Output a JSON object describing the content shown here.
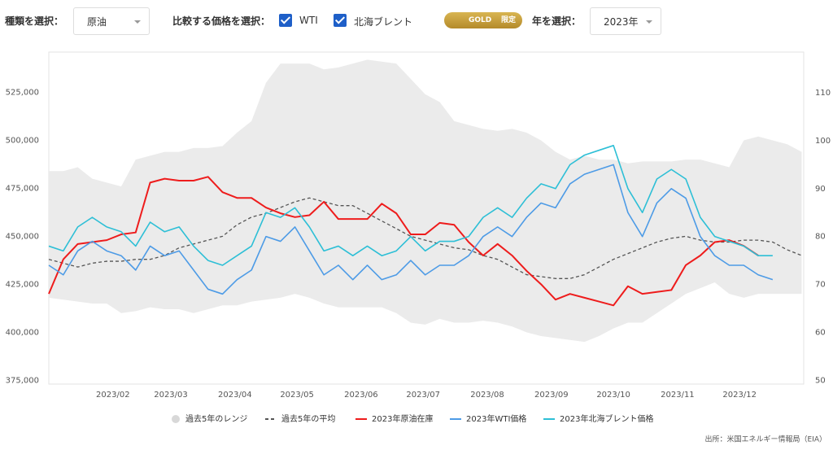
{
  "controls": {
    "type_label": "種類を選択：",
    "type_value": "原油",
    "compare_label": "比較する価格を選択：",
    "check1": "WTI",
    "check2": "北海ブレント",
    "badge1": "GOLD",
    "badge2": "限定",
    "year_label": "年を選択：",
    "year_value": "2023年"
  },
  "source": "出所：米国エネルギー情報局（EIA）",
  "chart_data": {
    "type": "line",
    "x": [
      0,
      7,
      14,
      21,
      28,
      35,
      42,
      49,
      56,
      63,
      70,
      77,
      84,
      91,
      98,
      105,
      112,
      119,
      126,
      133,
      140,
      147,
      154,
      161,
      168,
      175,
      182,
      189,
      196,
      203,
      210,
      217,
      224,
      231,
      238,
      245,
      252,
      259,
      266,
      273,
      280,
      287,
      294,
      301,
      308,
      315,
      322,
      329,
      336,
      343,
      350,
      357,
      364
    ],
    "xlim": [
      0,
      365
    ],
    "xticks": [
      {
        "value": 31,
        "label": "2023/02"
      },
      {
        "value": 59,
        "label": "2023/03"
      },
      {
        "value": 90,
        "label": "2023/04"
      },
      {
        "value": 120,
        "label": "2023/05"
      },
      {
        "value": 151,
        "label": "2023/06"
      },
      {
        "value": 181,
        "label": "2023/07"
      },
      {
        "value": 212,
        "label": "2023/08"
      },
      {
        "value": 243,
        "label": "2023/09"
      },
      {
        "value": 273,
        "label": "2023/10"
      },
      {
        "value": 304,
        "label": "2023/11"
      },
      {
        "value": 334,
        "label": "2023/12"
      }
    ],
    "ylim": [
      373000,
      546000
    ],
    "yticks": [
      {
        "value": 375000,
        "label": "375,000"
      },
      {
        "value": 400000,
        "label": "400,000"
      },
      {
        "value": 425000,
        "label": "425,000"
      },
      {
        "value": 450000,
        "label": "450,000"
      },
      {
        "value": 475000,
        "label": "475,000"
      },
      {
        "value": 500000,
        "label": "500,000"
      },
      {
        "value": 525000,
        "label": "525,000"
      }
    ],
    "y2lim": [
      49.2,
      118.5
    ],
    "y2ticks": [
      50,
      60,
      70,
      80,
      90,
      100,
      110
    ],
    "series": [
      {
        "name": "過去5年のレンジ",
        "kind": "range",
        "color": "#ebebeb",
        "high": [
          484000,
          484000,
          486000,
          480000,
          478000,
          476000,
          490000,
          492000,
          494000,
          494000,
          496000,
          496000,
          497000,
          504000,
          510000,
          530000,
          540000,
          540000,
          540000,
          537000,
          538000,
          540000,
          542000,
          541000,
          540000,
          532000,
          524000,
          520000,
          510000,
          508000,
          506000,
          505000,
          506000,
          504000,
          500000,
          494000,
          490000,
          492000,
          490000,
          490000,
          488000,
          489000,
          489000,
          489000,
          490000,
          490000,
          488000,
          486000,
          500000,
          502000,
          500000,
          498000,
          494000
        ],
        "low": [
          418000,
          417000,
          416000,
          415000,
          415000,
          410000,
          411000,
          413000,
          412000,
          412000,
          410000,
          412000,
          414000,
          414000,
          416000,
          417000,
          418000,
          420000,
          418000,
          415000,
          413000,
          413000,
          413000,
          413000,
          410000,
          405000,
          404000,
          407000,
          405000,
          405000,
          406000,
          405000,
          403000,
          400000,
          398000,
          397000,
          396000,
          395000,
          398000,
          402000,
          405000,
          405000,
          410000,
          415000,
          420000,
          423000,
          426000,
          420000,
          418000,
          420000,
          420000,
          420000,
          420000
        ]
      },
      {
        "name": "過去5年の平均",
        "color": "#555555",
        "dash": true,
        "values": [
          438000,
          436000,
          434000,
          436000,
          437000,
          437000,
          438000,
          438000,
          440000,
          444000,
          446000,
          448000,
          450000,
          456000,
          460000,
          462000,
          465000,
          468000,
          470000,
          468000,
          466000,
          466000,
          462000,
          458000,
          454000,
          450000,
          448000,
          446000,
          444000,
          443000,
          440000,
          438000,
          434000,
          430000,
          429000,
          428000,
          428000,
          430000,
          434000,
          438000,
          441000,
          444000,
          447000,
          449000,
          450000,
          448000,
          447000,
          447000,
          448000,
          448000,
          447000,
          443000,
          440000
        ]
      },
      {
        "name": "2023年原油在庫",
        "color": "#ee1c1c",
        "values": [
          420000,
          438000,
          446000,
          447000,
          448000,
          451000,
          452000,
          478000,
          480000,
          479000,
          479000,
          481000,
          473000,
          470000,
          470000,
          465000,
          462000,
          460000,
          461000,
          468000,
          459000,
          459000,
          459000,
          467000,
          462000,
          451000,
          451000,
          457000,
          456000,
          447000,
          440000,
          446000,
          440000,
          432000,
          425000,
          417000,
          420000,
          418000,
          416000,
          414000,
          424000,
          420000,
          421000,
          422000,
          435000,
          440000,
          447000,
          448000,
          445000,
          440000,
          null,
          null,
          null
        ]
      },
      {
        "name": "2023年WTI価格",
        "color": "#4d9be6",
        "axis": "y2",
        "values": [
          74,
          72,
          77,
          79,
          77,
          76,
          73,
          78,
          76,
          77,
          73,
          69,
          68,
          71,
          73,
          80,
          79,
          82,
          77,
          72,
          74,
          71,
          74,
          71,
          72,
          75,
          72,
          74,
          74,
          76,
          80,
          82,
          80,
          84,
          87,
          86,
          91,
          93,
          94,
          95,
          85,
          80,
          87,
          90,
          88,
          80,
          76,
          74,
          74,
          72,
          71,
          null,
          null
        ]
      },
      {
        "name": "2023年北海ブレント価格",
        "color": "#2dbfd6",
        "axis": "y2",
        "values": [
          78,
          77,
          82,
          84,
          82,
          81,
          78,
          83,
          81,
          82,
          78,
          75,
          74,
          76,
          78,
          85,
          84,
          86,
          82,
          77,
          78,
          76,
          78,
          76,
          77,
          80,
          77,
          79,
          79,
          80,
          84,
          86,
          84,
          88,
          91,
          90,
          95,
          97,
          98,
          99,
          90,
          85,
          92,
          94,
          92,
          84,
          80,
          79,
          78,
          76,
          76,
          null,
          null
        ]
      }
    ]
  }
}
